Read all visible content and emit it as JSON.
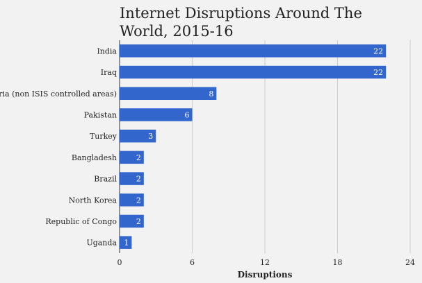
{
  "chart_data": {
    "type": "bar",
    "orientation": "horizontal",
    "title": "Internet Disruptions Around The World, 2015-16",
    "xlabel": "Disruptions",
    "ylabel": "",
    "categories": [
      "India",
      "Iraq",
      "Syria (non ISIS controlled areas)",
      "Pakistan",
      "Turkey",
      "Bangladesh",
      "Brazil",
      "North Korea",
      "Republic of Congo",
      "Uganda"
    ],
    "values": [
      22,
      22,
      8,
      6,
      3,
      2,
      2,
      2,
      2,
      1
    ],
    "xlim": [
      0,
      24
    ],
    "xticks": [
      0,
      6,
      12,
      18,
      24
    ],
    "grid": "vertical",
    "legend": "none",
    "colors": {
      "bar": "#3366cc",
      "grid": "#cccccc",
      "background": "#f2f2f2"
    }
  }
}
